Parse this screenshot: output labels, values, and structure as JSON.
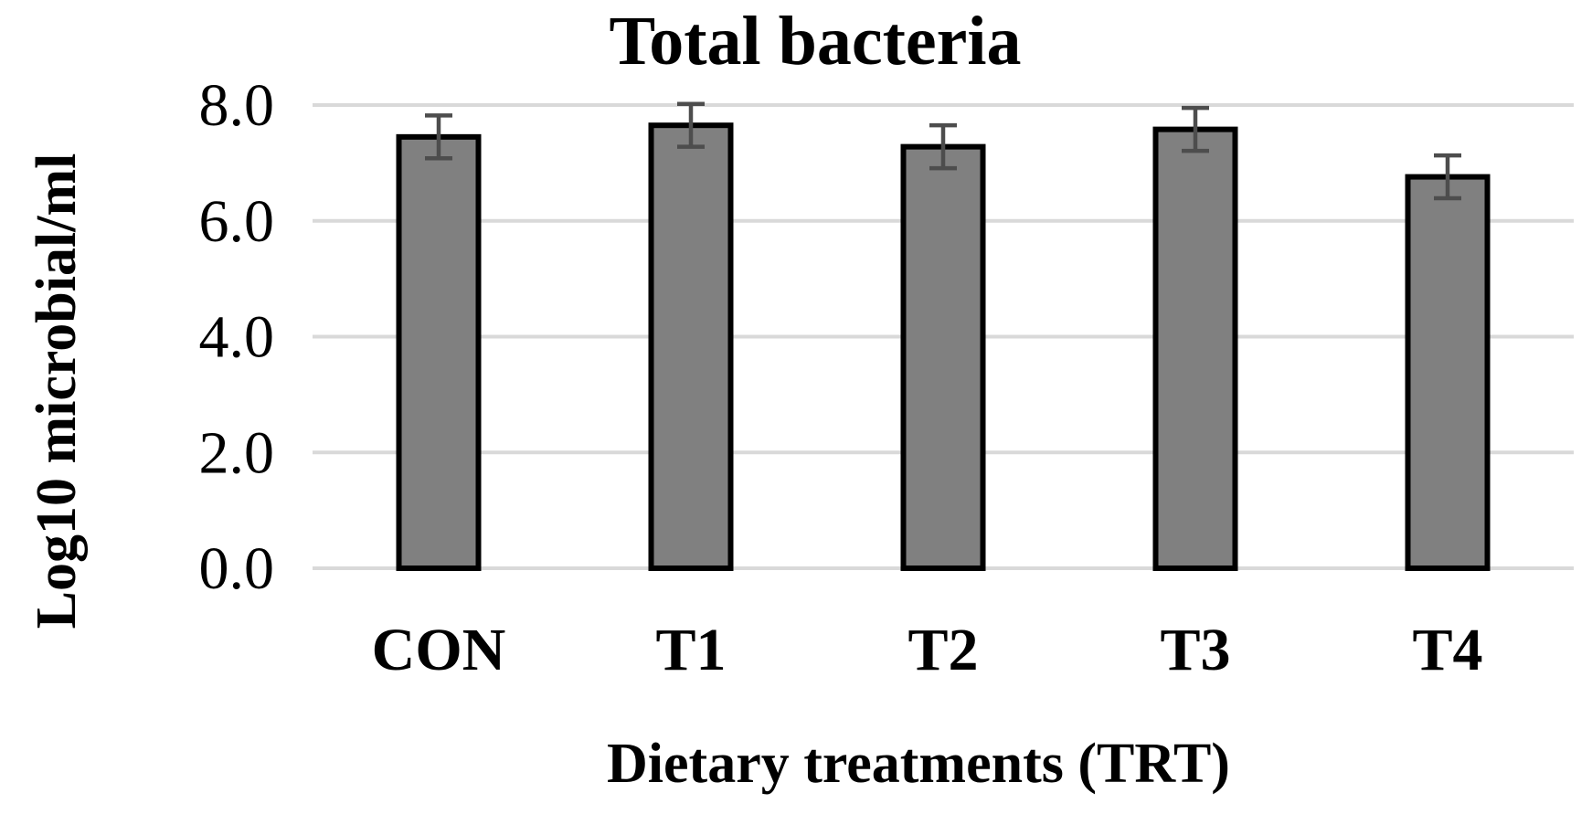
{
  "chart_data": {
    "type": "bar",
    "title": "Total bacteria",
    "xlabel": "Dietary treatments (TRT)",
    "ylabel": "Log10 microbial/ml",
    "categories": [
      "CON",
      "T1",
      "T2",
      "T3",
      "T4"
    ],
    "values": [
      7.45,
      7.65,
      7.28,
      7.58,
      6.76
    ],
    "error": [
      0.37,
      0.37,
      0.37,
      0.37,
      0.37
    ],
    "ylim": [
      0,
      8
    ],
    "yticks": [
      "0.0",
      "2.0",
      "4.0",
      "6.0",
      "8.0"
    ],
    "grid": true,
    "legend": false,
    "colors": {
      "bar_fill": "#808080",
      "bar_edge": "#000000",
      "grid": "#d9d9d9",
      "error_bar": "#4d4d4d"
    }
  }
}
